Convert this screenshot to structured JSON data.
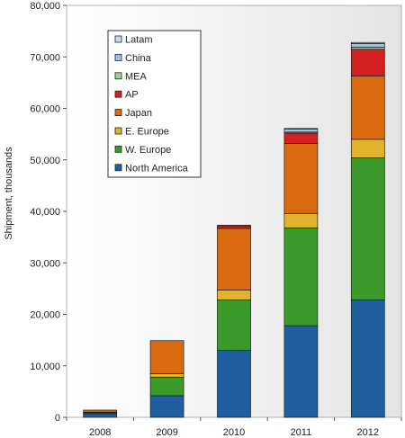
{
  "chart_data": {
    "type": "bar",
    "stacked": true,
    "categories": [
      "2008",
      "2009",
      "2010",
      "2011",
      "2012"
    ],
    "ylabel": "Shipment, thousands",
    "ylim": [
      0,
      80000
    ],
    "yticks": [
      0,
      10000,
      20000,
      30000,
      40000,
      50000,
      60000,
      70000,
      80000
    ],
    "ytick_labels": [
      "0",
      "10,000",
      "20,000",
      "30,000",
      "40,000",
      "50,000",
      "60,000",
      "70,000",
      "80,000"
    ],
    "grid": false,
    "legend_position": "top-left",
    "series": [
      {
        "name": "North America",
        "color": "#1f5fa0",
        "values": [
          700,
          4200,
          13000,
          17800,
          22800
        ]
      },
      {
        "name": "W. Europe",
        "color": "#3a9a2a",
        "values": [
          200,
          3600,
          9800,
          19000,
          27600
        ]
      },
      {
        "name": "E. Europe",
        "color": "#e0b42a",
        "values": [
          100,
          700,
          1900,
          2800,
          3600
        ]
      },
      {
        "name": "Japan",
        "color": "#d96a10",
        "values": [
          400,
          6400,
          12000,
          13600,
          12300
        ]
      },
      {
        "name": "AP",
        "color": "#d42020",
        "values": [
          0,
          0,
          500,
          2000,
          5200
        ]
      },
      {
        "name": "MEA",
        "color": "#9ed98a",
        "values": [
          0,
          0,
          100,
          200,
          400
        ]
      },
      {
        "name": "China",
        "color": "#9cc4e8",
        "values": [
          0,
          0,
          0,
          600,
          700
        ]
      },
      {
        "name": "Latam",
        "color": "#c8dcf0",
        "values": [
          0,
          0,
          0,
          100,
          200
        ]
      }
    ]
  }
}
